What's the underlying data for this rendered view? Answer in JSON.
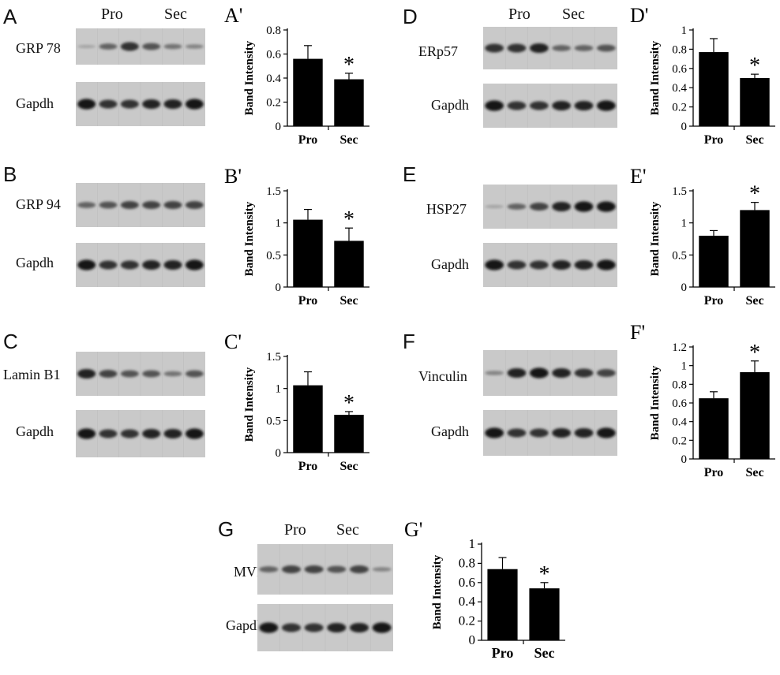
{
  "panels": [
    {
      "letter": "A",
      "protein": "GRP 78",
      "loading": "Gapdh",
      "groups": [
        "Pro",
        "Sec"
      ]
    },
    {
      "letter": "B",
      "protein": "GRP 94",
      "loading": "Gapdh"
    },
    {
      "letter": "C",
      "protein": "Lamin B1",
      "loading": "Gapdh"
    },
    {
      "letter": "D",
      "protein": "ERp57",
      "loading": "Gapdh",
      "groups": [
        "Pro",
        "Sec"
      ]
    },
    {
      "letter": "E",
      "protein": "HSP27",
      "loading": "Gapdh"
    },
    {
      "letter": "F",
      "protein": "Vinculin",
      "loading": "Gapdh"
    },
    {
      "letter": "G",
      "protein": "MVP",
      "loading": "Gapdh",
      "groups": [
        "Pro",
        "Sec"
      ]
    }
  ],
  "chart_data": [
    {
      "panel": "A'",
      "type": "bar",
      "categories": [
        "Pro",
        "Sec"
      ],
      "values": [
        0.56,
        0.39
      ],
      "errors": [
        0.11,
        0.05
      ],
      "ylabel": "Band Intensity",
      "ylim": [
        0,
        0.8
      ],
      "yticks": [
        "0",
        "0.2",
        "0.4",
        "0.6",
        "0.8"
      ],
      "significance_marker": "*"
    },
    {
      "panel": "B'",
      "type": "bar",
      "categories": [
        "Pro",
        "Sec"
      ],
      "values": [
        1.05,
        0.72
      ],
      "errors": [
        0.16,
        0.2
      ],
      "ylabel": "Band Intensity",
      "ylim": [
        0,
        1.5
      ],
      "yticks": [
        "0",
        "0.5",
        "1",
        "1.5"
      ],
      "significance_marker": "*"
    },
    {
      "panel": "C'",
      "type": "bar",
      "categories": [
        "Pro",
        "Sec"
      ],
      "values": [
        1.05,
        0.59
      ],
      "errors": [
        0.21,
        0.05
      ],
      "ylabel": "Band Intensity",
      "ylim": [
        0,
        1.5
      ],
      "yticks": [
        "0",
        "0.5",
        "1",
        "1.5"
      ],
      "significance_marker": "*"
    },
    {
      "panel": "D'",
      "type": "bar",
      "categories": [
        "Pro",
        "Sec"
      ],
      "values": [
        0.77,
        0.5
      ],
      "errors": [
        0.14,
        0.04
      ],
      "ylabel": "Band Intensity",
      "ylim": [
        0,
        1
      ],
      "yticks": [
        "0",
        "0.2",
        "0.4",
        "0.6",
        "0.8",
        "1"
      ],
      "significance_marker": "*"
    },
    {
      "panel": "E'",
      "type": "bar",
      "categories": [
        "Pro",
        "Sec"
      ],
      "values": [
        0.8,
        1.2
      ],
      "errors": [
        0.08,
        0.12
      ],
      "ylabel": "Band Intensity",
      "ylim": [
        0,
        1.5
      ],
      "yticks": [
        "0",
        "0.5",
        "1",
        "1.5"
      ],
      "significance_marker": "*"
    },
    {
      "panel": "F'",
      "type": "bar",
      "categories": [
        "Pro",
        "Sec"
      ],
      "values": [
        0.65,
        0.93
      ],
      "errors": [
        0.07,
        0.12
      ],
      "ylabel": "Band Intensity",
      "ylim": [
        0,
        1.2
      ],
      "yticks": [
        "0",
        "0.2",
        "0.4",
        "0.6",
        "0.8",
        "1",
        "1.2"
      ],
      "significance_marker": "*"
    },
    {
      "panel": "G'",
      "type": "bar",
      "categories": [
        "Pro",
        "Sec"
      ],
      "values": [
        0.74,
        0.54
      ],
      "errors": [
        0.12,
        0.06
      ],
      "ylabel": "Band Intensity",
      "ylim": [
        0,
        1
      ],
      "yticks": [
        "0",
        "0.2",
        "0.4",
        "0.6",
        "0.8",
        "1"
      ],
      "significance_marker": "*"
    }
  ]
}
